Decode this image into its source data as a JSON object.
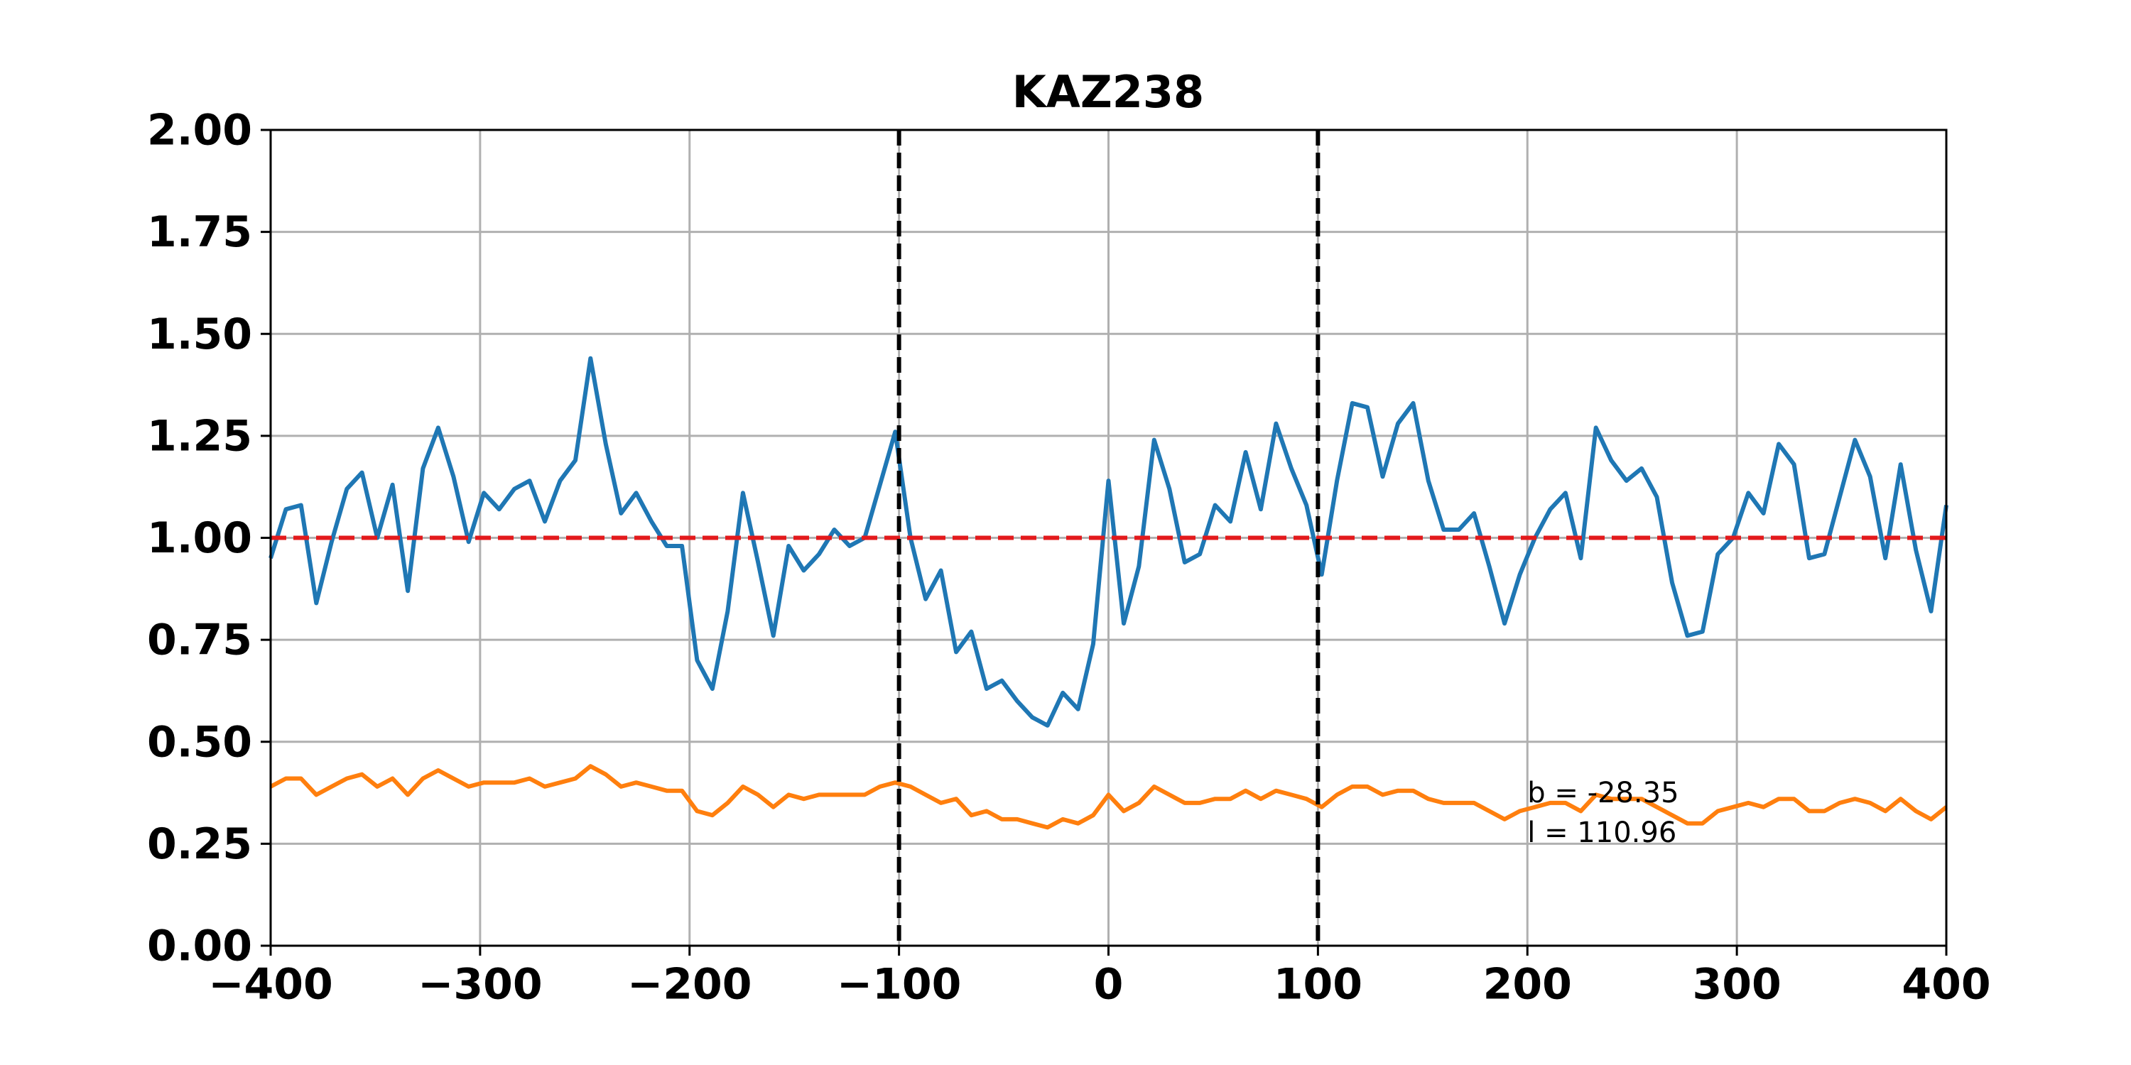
{
  "chart_data": {
    "type": "line",
    "title": "KAZ238",
    "x": [
      -400,
      -392.7,
      -385.5,
      -378.2,
      -370.9,
      -363.6,
      -356.4,
      -349.1,
      -341.8,
      -334.5,
      -327.3,
      -320,
      -312.7,
      -305.5,
      -298.2,
      -290.9,
      -283.6,
      -276.4,
      -269.1,
      -261.8,
      -254.5,
      -247.3,
      -240,
      -232.7,
      -225.5,
      -218.2,
      -210.9,
      -203.6,
      -196.4,
      -189.1,
      -181.8,
      -174.5,
      -167.3,
      -160,
      -152.7,
      -145.5,
      -138.2,
      -130.9,
      -123.6,
      -116.4,
      -109.1,
      -101.8,
      -94.5,
      -87.3,
      -80,
      -72.7,
      -65.5,
      -58.2,
      -50.9,
      -43.6,
      -36.4,
      -29.1,
      -21.8,
      -14.5,
      -7.3,
      0,
      7.3,
      14.5,
      21.8,
      29.1,
      36.4,
      43.6,
      50.9,
      58.2,
      65.5,
      72.7,
      80,
      87.3,
      94.5,
      101.8,
      109.1,
      116.4,
      123.6,
      130.9,
      138.2,
      145.5,
      152.7,
      160,
      167.3,
      174.5,
      181.8,
      189.1,
      196.4,
      203.6,
      210.9,
      218.2,
      225.5,
      232.7,
      240,
      247.3,
      254.5,
      261.8,
      269.1,
      276.4,
      283.6,
      290.9,
      298.2,
      305.5,
      312.7,
      320,
      327.3,
      334.5,
      341.8,
      349.1,
      356.4,
      363.6,
      370.9,
      378.2,
      385.5,
      392.7,
      400
    ],
    "series": [
      {
        "color": "#1f77b4",
        "values": [
          0.95,
          1.07,
          1.08,
          0.84,
          0.99,
          1.12,
          1.16,
          1.0,
          1.13,
          0.87,
          1.17,
          1.27,
          1.15,
          0.99,
          1.11,
          1.07,
          1.12,
          1.14,
          1.04,
          1.14,
          1.19,
          1.44,
          1.23,
          1.06,
          1.11,
          1.04,
          0.98,
          0.98,
          0.7,
          0.63,
          0.82,
          1.11,
          0.94,
          0.76,
          0.98,
          0.92,
          0.96,
          1.02,
          0.98,
          1.0,
          1.13,
          1.26,
          1.0,
          0.85,
          0.92,
          0.72,
          0.77,
          0.63,
          0.65,
          0.6,
          0.56,
          0.54,
          0.62,
          0.58,
          0.74,
          1.14,
          0.79,
          0.93,
          1.24,
          1.12,
          0.94,
          0.96,
          1.08,
          1.04,
          1.21,
          1.07,
          1.28,
          1.17,
          1.08,
          0.91,
          1.14,
          1.33,
          1.32,
          1.15,
          1.28,
          1.33,
          1.14,
          1.02,
          1.02,
          1.06,
          0.93,
          0.79,
          0.91,
          1.0,
          1.07,
          1.11,
          0.95,
          1.27,
          1.19,
          1.14,
          1.17,
          1.1,
          0.89,
          0.76,
          0.77,
          0.96,
          1.0,
          1.11,
          1.06,
          1.23,
          1.18,
          0.95,
          0.96,
          1.1,
          1.24,
          1.15,
          0.95,
          1.18,
          0.97,
          0.82,
          1.08
        ]
      },
      {
        "color": "#ff7f0e",
        "values": [
          0.39,
          0.41,
          0.41,
          0.37,
          0.39,
          0.41,
          0.42,
          0.39,
          0.41,
          0.37,
          0.41,
          0.43,
          0.41,
          0.39,
          0.4,
          0.4,
          0.4,
          0.41,
          0.39,
          0.4,
          0.41,
          0.44,
          0.42,
          0.39,
          0.4,
          0.39,
          0.38,
          0.38,
          0.33,
          0.32,
          0.35,
          0.39,
          0.37,
          0.34,
          0.37,
          0.36,
          0.37,
          0.37,
          0.37,
          0.37,
          0.39,
          0.4,
          0.39,
          0.37,
          0.35,
          0.36,
          0.32,
          0.33,
          0.31,
          0.31,
          0.3,
          0.29,
          0.31,
          0.3,
          0.32,
          0.37,
          0.33,
          0.35,
          0.39,
          0.37,
          0.35,
          0.35,
          0.36,
          0.36,
          0.38,
          0.36,
          0.38,
          0.37,
          0.36,
          0.34,
          0.37,
          0.39,
          0.39,
          0.37,
          0.38,
          0.38,
          0.36,
          0.35,
          0.35,
          0.35,
          0.33,
          0.31,
          0.33,
          0.34,
          0.35,
          0.35,
          0.33,
          0.37,
          0.36,
          0.36,
          0.36,
          0.34,
          0.32,
          0.3,
          0.3,
          0.33,
          0.34,
          0.35,
          0.34,
          0.36,
          0.36,
          0.33,
          0.33,
          0.35,
          0.36,
          0.35,
          0.33,
          0.36,
          0.33,
          0.31,
          0.34
        ]
      }
    ],
    "hline": {
      "value": 1,
      "color": "#e31a1c"
    },
    "vlines": {
      "values": [
        -100,
        100
      ],
      "color": "#000000"
    },
    "annotations": [
      "b = -28.35",
      "l = 110.96"
    ],
    "xlim": [
      -400,
      400
    ],
    "xticks": [
      {
        "value": -400,
        "label": "−400"
      },
      {
        "value": -300,
        "label": "−300"
      },
      {
        "value": -200,
        "label": "−200"
      },
      {
        "value": -100,
        "label": "−100"
      },
      0,
      100,
      200,
      300,
      400
    ],
    "ylim": [
      0,
      2
    ],
    "yticks": [
      {
        "value": 0,
        "label": "0.00"
      },
      {
        "value": 0.25,
        "label": "0.25"
      },
      {
        "value": 0.5,
        "label": "0.50"
      },
      {
        "value": 0.75,
        "label": "0.75"
      },
      {
        "value": 1,
        "label": "1.00"
      },
      {
        "value": 1.25,
        "label": "1.25"
      },
      {
        "value": 1.5,
        "label": "1.50"
      },
      {
        "value": 1.75,
        "label": "1.75"
      },
      {
        "value": 2,
        "label": "2.00"
      }
    ],
    "grid": true
  }
}
